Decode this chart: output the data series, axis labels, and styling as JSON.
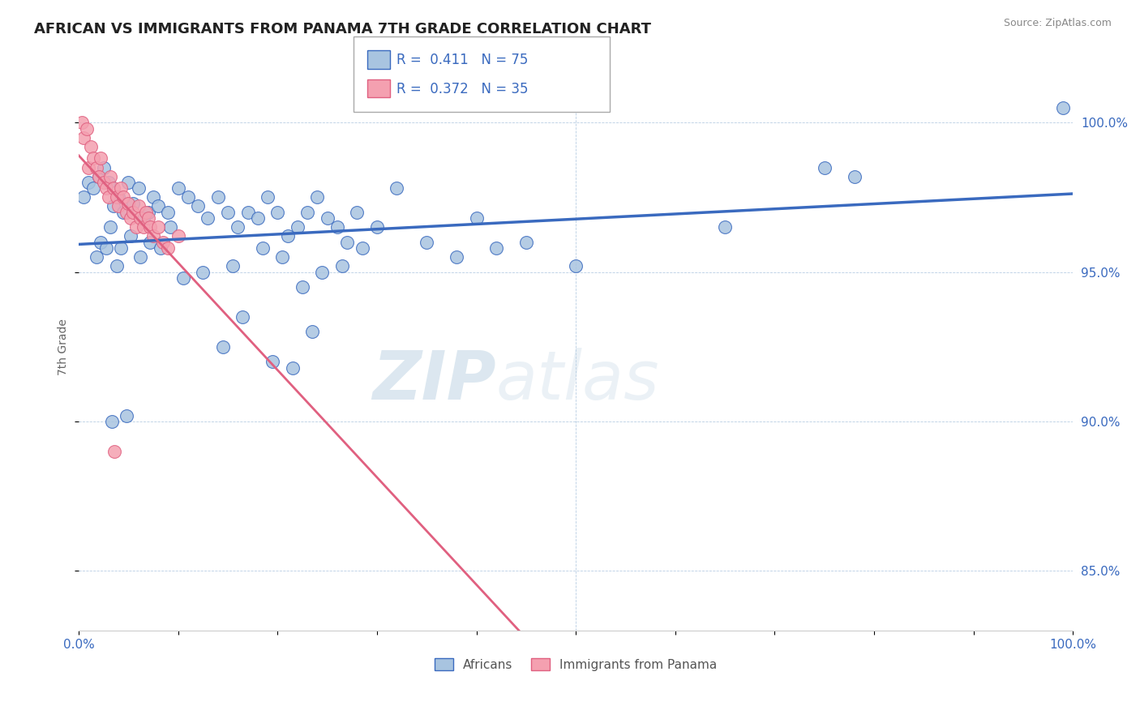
{
  "title": "AFRICAN VS IMMIGRANTS FROM PANAMA 7TH GRADE CORRELATION CHART",
  "source": "Source: ZipAtlas.com",
  "ylabel": "7th Grade",
  "xlim": [
    0,
    100
  ],
  "ylim": [
    83,
    102
  ],
  "yticks": [
    85.0,
    90.0,
    95.0,
    100.0
  ],
  "xticks": [
    0,
    10,
    20,
    30,
    40,
    50,
    60,
    70,
    80,
    90,
    100
  ],
  "blue_R": 0.411,
  "blue_N": 75,
  "pink_R": 0.372,
  "pink_N": 35,
  "blue_color": "#a8c4e0",
  "blue_line_color": "#3a6abf",
  "pink_color": "#f4a0b0",
  "pink_line_color": "#e06080",
  "legend_label_blue": "Africans",
  "legend_label_pink": "Immigrants from Panama",
  "watermark_zip": "ZIP",
  "watermark_atlas": "atlas",
  "blue_scatter_x": [
    0.5,
    1.0,
    1.5,
    2.0,
    2.5,
    3.0,
    3.5,
    4.0,
    4.5,
    5.0,
    5.5,
    6.0,
    6.5,
    7.0,
    7.5,
    8.0,
    9.0,
    10.0,
    11.0,
    12.0,
    13.0,
    14.0,
    15.0,
    16.0,
    17.0,
    18.0,
    19.0,
    20.0,
    21.0,
    22.0,
    23.0,
    24.0,
    25.0,
    26.0,
    27.0,
    28.0,
    30.0,
    32.0,
    35.0,
    38.0,
    40.0,
    42.0,
    45.0,
    50.0,
    65.0,
    75.0,
    78.0,
    99.0,
    1.8,
    2.2,
    2.8,
    3.2,
    3.8,
    4.2,
    5.2,
    6.2,
    7.2,
    8.2,
    9.2,
    10.5,
    12.5,
    15.5,
    18.5,
    20.5,
    22.5,
    24.5,
    26.5,
    28.5,
    14.5,
    16.5,
    19.5,
    21.5,
    23.5,
    3.3,
    4.8
  ],
  "blue_scatter_y": [
    97.5,
    98.0,
    97.8,
    98.2,
    98.5,
    98.0,
    97.2,
    97.5,
    97.0,
    98.0,
    97.3,
    97.8,
    96.8,
    97.0,
    97.5,
    97.2,
    97.0,
    97.8,
    97.5,
    97.2,
    96.8,
    97.5,
    97.0,
    96.5,
    97.0,
    96.8,
    97.5,
    97.0,
    96.2,
    96.5,
    97.0,
    97.5,
    96.8,
    96.5,
    96.0,
    97.0,
    96.5,
    97.8,
    96.0,
    95.5,
    96.8,
    95.8,
    96.0,
    95.2,
    96.5,
    98.5,
    98.2,
    100.5,
    95.5,
    96.0,
    95.8,
    96.5,
    95.2,
    95.8,
    96.2,
    95.5,
    96.0,
    95.8,
    96.5,
    94.8,
    95.0,
    95.2,
    95.8,
    95.5,
    94.5,
    95.0,
    95.2,
    95.8,
    92.5,
    93.5,
    92.0,
    91.8,
    93.0,
    90.0,
    90.2
  ],
  "pink_scatter_x": [
    0.3,
    0.5,
    0.8,
    1.0,
    1.2,
    1.5,
    1.8,
    2.0,
    2.2,
    2.5,
    2.8,
    3.0,
    3.2,
    3.5,
    3.8,
    4.0,
    4.2,
    4.5,
    4.8,
    5.0,
    5.2,
    5.5,
    5.8,
    6.0,
    6.2,
    6.5,
    6.8,
    7.0,
    7.2,
    7.5,
    8.0,
    8.5,
    9.0,
    10.0,
    3.6
  ],
  "pink_scatter_y": [
    100.0,
    99.5,
    99.8,
    98.5,
    99.2,
    98.8,
    98.5,
    98.2,
    98.8,
    98.0,
    97.8,
    97.5,
    98.2,
    97.8,
    97.5,
    97.2,
    97.8,
    97.5,
    97.0,
    97.3,
    96.8,
    97.0,
    96.5,
    97.2,
    96.8,
    96.5,
    97.0,
    96.8,
    96.5,
    96.2,
    96.5,
    96.0,
    95.8,
    96.2,
    89.0
  ]
}
